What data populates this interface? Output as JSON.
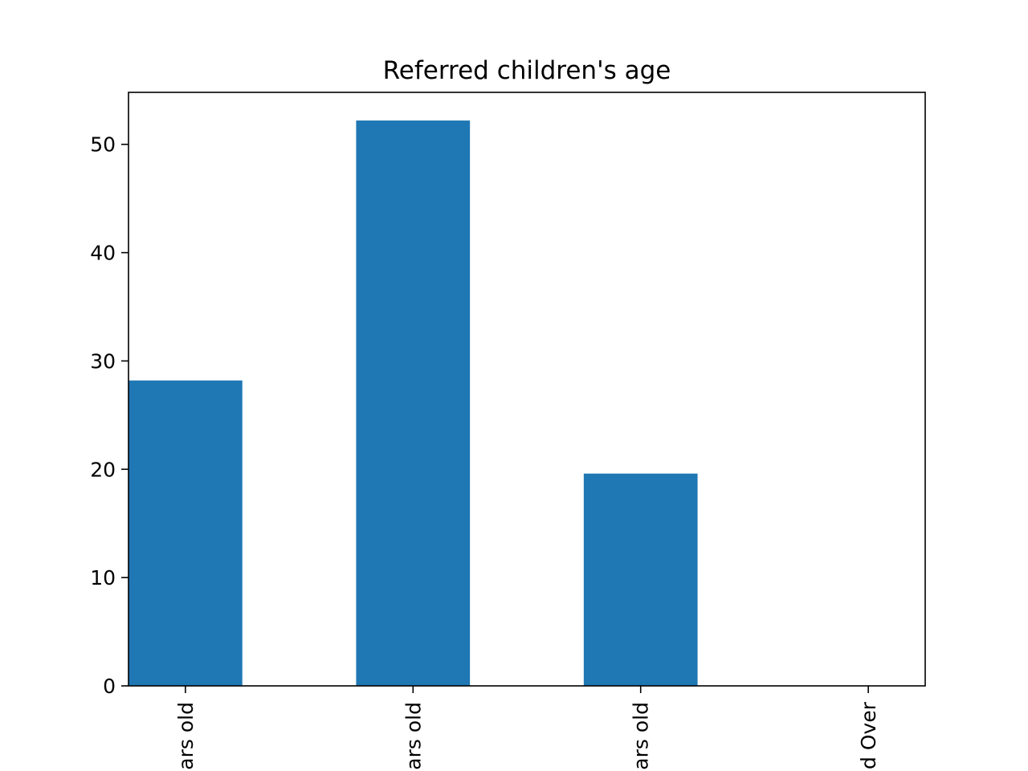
{
  "chart_data": {
    "type": "bar",
    "title": "Referred children's age",
    "categories": [
      "ars old",
      "ars old",
      "ars old",
      "d Over"
    ],
    "values": [
      28.2,
      52.2,
      19.6,
      0
    ],
    "xlabel": "",
    "ylabel": "",
    "ylim": [
      0,
      54.8
    ],
    "yticks": [
      0,
      10,
      20,
      30,
      40,
      50
    ],
    "grid": false,
    "bar_color": "#1f77b4"
  }
}
